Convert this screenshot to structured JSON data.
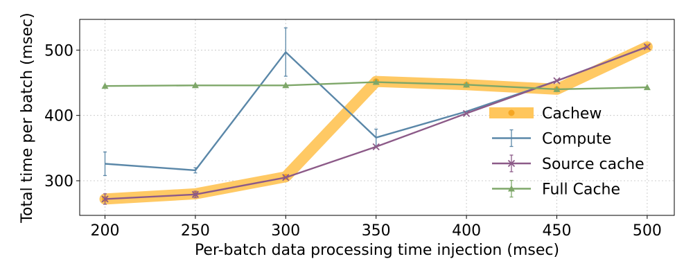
{
  "chart_data": {
    "type": "line",
    "xlabel": "Per-batch data processing time injection (msec)",
    "ylabel": "Total time per batch (msec)",
    "x": [
      200,
      250,
      300,
      350,
      400,
      450,
      500
    ],
    "xticks": [
      "200",
      "250",
      "300",
      "350",
      "400",
      "450",
      "500"
    ],
    "yticks": [
      "300",
      "400",
      "500"
    ],
    "xlim": [
      186,
      515
    ],
    "ylim": [
      247,
      547
    ],
    "grid": true,
    "legend_position": "right",
    "series": [
      {
        "name": "Cachew",
        "color": "#ffc65c",
        "marker": "circle",
        "style": "thick-band",
        "values": [
          272,
          280,
          306,
          452,
          447,
          440,
          505
        ],
        "errors": null
      },
      {
        "name": "Compute",
        "color": "#5a87a8",
        "marker": "none",
        "style": "errorbar",
        "values": [
          326,
          316,
          497,
          366,
          406,
          453,
          505
        ],
        "errors": [
          18,
          4,
          37,
          13,
          0,
          0,
          0
        ]
      },
      {
        "name": "Source cache",
        "color": "#8c5a88",
        "marker": "x",
        "style": "line",
        "values": [
          272,
          279,
          305,
          352,
          403,
          453,
          505
        ],
        "errors": [
          8,
          5,
          0,
          0,
          0,
          0,
          0
        ]
      },
      {
        "name": "Full Cache",
        "color": "#7ea769",
        "marker": "triangle",
        "style": "line",
        "values": [
          445,
          446,
          446,
          451,
          447,
          440,
          443
        ],
        "errors": [
          0,
          0,
          0,
          0,
          0,
          0,
          0
        ]
      }
    ]
  }
}
